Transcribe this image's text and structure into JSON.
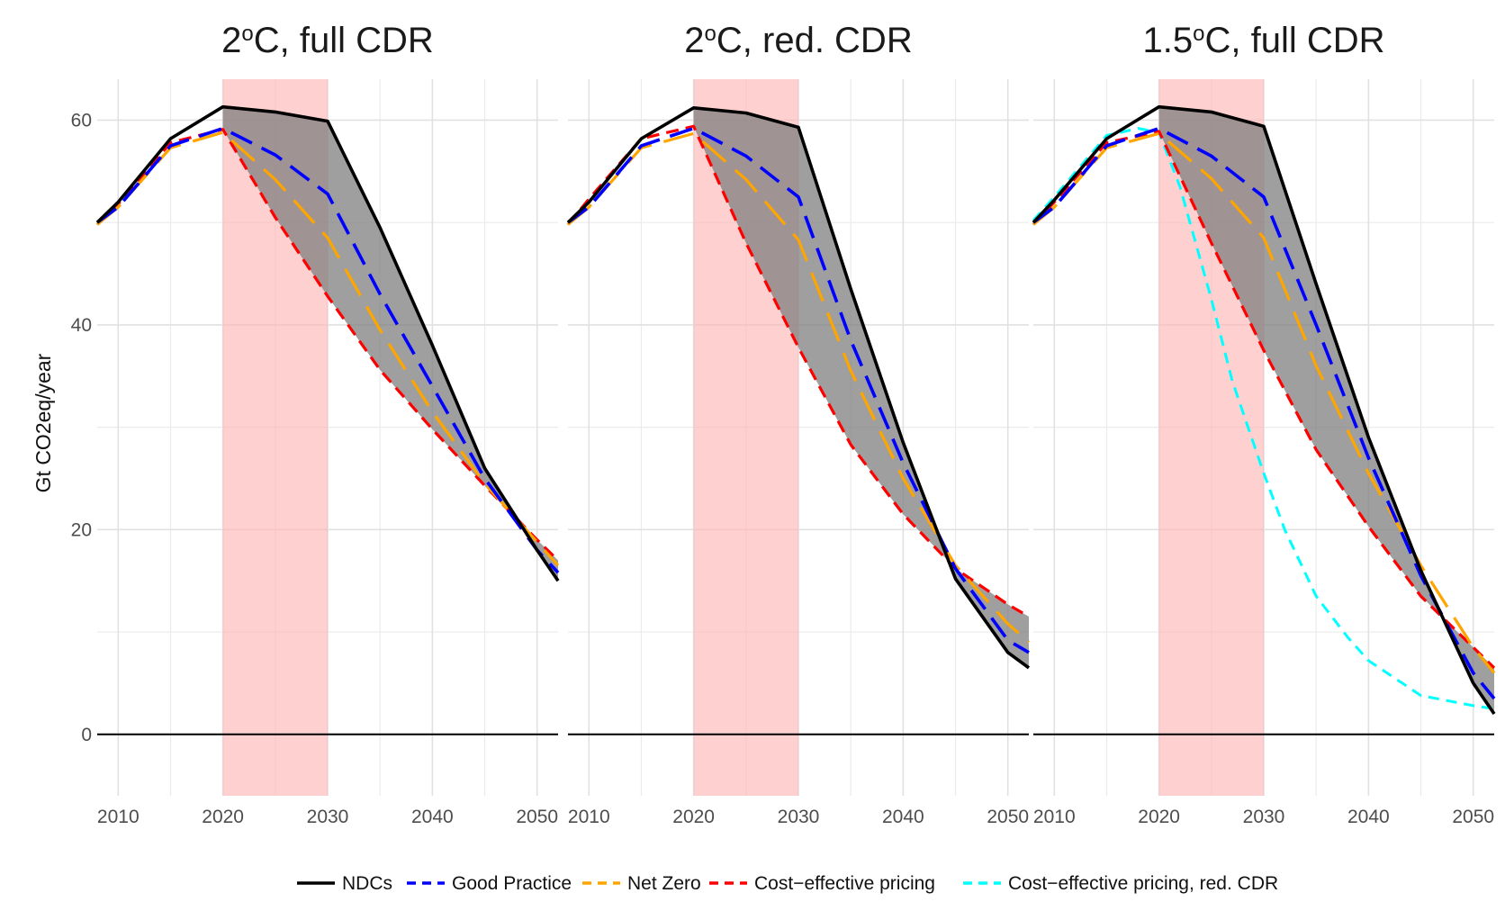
{
  "chart_data": {
    "type": "line",
    "ylabel": "Gt CO2eq/year",
    "xlim": [
      2008,
      2052
    ],
    "ylim": [
      -6,
      64
    ],
    "x_ticks": [
      2010,
      2020,
      2030,
      2040,
      2050
    ],
    "y_ticks": [
      0,
      20,
      40,
      60
    ],
    "shaded_x_range": [
      2020,
      2030
    ],
    "band_between": [
      "NDCs",
      "Cost−effective pricing"
    ],
    "colors": {
      "NDCs": "#000000",
      "Good Practice": "#0000ff",
      "Net Zero": "#ffa500",
      "Cost−effective pricing": "#ff0000",
      "Cost−effective pricing, red. CDR": "#00ffff",
      "highlight": "#ffb3b3",
      "band": "#7f7f7f"
    },
    "legend": {
      "position": "bottom",
      "entries": [
        {
          "label": "NDCs",
          "color": "#000000",
          "dash": "solid"
        },
        {
          "label": "Good Practice",
          "color": "#0000ff",
          "dash": "dashed"
        },
        {
          "label": "Net Zero",
          "color": "#ffa500",
          "dash": "longdash"
        },
        {
          "label": "Cost−effective pricing",
          "color": "#ff0000",
          "dash": "dashed"
        },
        {
          "label": "Cost−effective pricing, red. CDR",
          "color": "#00ffff",
          "dash": "dashed"
        }
      ]
    },
    "panels": [
      {
        "title_main": "2",
        "title_sup": "o",
        "title_rest": "C, full CDR",
        "series": [
          {
            "name": "NDCs",
            "x": [
              2008,
              2010,
              2015,
              2020,
              2025,
              2030,
              2035,
              2040,
              2045,
              2050,
              2052
            ],
            "y": [
              50,
              52,
              58.2,
              61.3,
              60.8,
              59.9,
              49.5,
              38,
              26,
              18,
              15
            ]
          },
          {
            "name": "Good Practice",
            "x": [
              2008,
              2010,
              2015,
              2020,
              2025,
              2030,
              2035,
              2040,
              2045,
              2050,
              2052
            ],
            "y": [
              50,
              51.5,
              57.5,
              59.2,
              56.6,
              52.8,
              43,
              34,
              25,
              18,
              15.8
            ]
          },
          {
            "name": "Net Zero",
            "x": [
              2008,
              2010,
              2015,
              2020,
              2025,
              2030,
              2035,
              2040,
              2045,
              2050,
              2052
            ],
            "y": [
              49.8,
              51.5,
              57.3,
              58.8,
              54.2,
              48.5,
              39.5,
              31.5,
              24.5,
              18.8,
              16.5
            ]
          },
          {
            "name": "Cost−effective pricing",
            "x": [
              2008,
              2010,
              2015,
              2020,
              2025,
              2030,
              2035,
              2040,
              2045,
              2050,
              2052
            ],
            "y": [
              49.8,
              51.8,
              57.8,
              59.1,
              50.5,
              42.8,
              35.6,
              29.8,
              24.3,
              19,
              17
            ]
          }
        ]
      },
      {
        "title_main": "2",
        "title_sup": "o",
        "title_rest": "C, red. CDR",
        "series": [
          {
            "name": "NDCs",
            "x": [
              2008,
              2010,
              2015,
              2020,
              2025,
              2030,
              2035,
              2040,
              2045,
              2050,
              2052
            ],
            "y": [
              50,
              52,
              58.2,
              61.2,
              60.7,
              59.3,
              43.5,
              28.5,
              15.2,
              8,
              6.5
            ]
          },
          {
            "name": "Good Practice",
            "x": [
              2008,
              2010,
              2015,
              2020,
              2025,
              2030,
              2035,
              2040,
              2045,
              2050,
              2052
            ],
            "y": [
              50,
              51.5,
              57.5,
              59.2,
              56.5,
              52.5,
              38.5,
              26.5,
              16.2,
              9.2,
              8
            ]
          },
          {
            "name": "Net Zero",
            "x": [
              2008,
              2010,
              2015,
              2020,
              2025,
              2030,
              2035,
              2040,
              2045,
              2050,
              2052
            ],
            "y": [
              49.8,
              51.5,
              57.3,
              58.7,
              54.2,
              48.3,
              35.5,
              25,
              16.5,
              10.8,
              9
            ]
          },
          {
            "name": "Cost−effective pricing",
            "x": [
              2008,
              2010,
              2015,
              2020,
              2025,
              2030,
              2035,
              2040,
              2045,
              2050,
              2052
            ],
            "y": [
              49.8,
              52.3,
              58.2,
              59.4,
              48,
              37.8,
              28.3,
              21.5,
              16.2,
              12.7,
              11.5
            ]
          }
        ]
      },
      {
        "title_main": "1.5",
        "title_sup": "o",
        "title_rest": "C, full CDR",
        "series": [
          {
            "name": "NDCs",
            "x": [
              2008,
              2010,
              2015,
              2020,
              2025,
              2030,
              2035,
              2040,
              2045,
              2050,
              2052
            ],
            "y": [
              50,
              52.2,
              58.2,
              61.3,
              60.8,
              59.4,
              44,
              29,
              16,
              5,
              2
            ]
          },
          {
            "name": "Good Practice",
            "x": [
              2008,
              2010,
              2015,
              2020,
              2025,
              2030,
              2035,
              2040,
              2045,
              2050,
              2052
            ],
            "y": [
              50,
              51.5,
              57.5,
              59.2,
              56.5,
              52.5,
              40,
              27,
              15.5,
              6,
              3.5
            ]
          },
          {
            "name": "Net Zero",
            "x": [
              2008,
              2010,
              2015,
              2020,
              2025,
              2030,
              2035,
              2040,
              2045,
              2050,
              2052
            ],
            "y": [
              49.8,
              51.5,
              57.3,
              58.7,
              54.3,
              48.5,
              36,
              25.5,
              16.5,
              8.5,
              6
            ]
          },
          {
            "name": "Cost−effective pricing",
            "x": [
              2008,
              2010,
              2015,
              2020,
              2025,
              2030,
              2035,
              2040,
              2045,
              2050,
              2052
            ],
            "y": [
              49.8,
              52,
              57.8,
              58.9,
              48,
              37.5,
              27.8,
              20.3,
              13.5,
              8.5,
              6.5
            ]
          },
          {
            "name": "Cost−effective pricing, red. CDR",
            "x": [
              2008,
              2010,
              2015,
              2018,
              2020,
              2022,
              2025,
              2027,
              2030,
              2032,
              2035,
              2038,
              2040,
              2045,
              2050,
              2052
            ],
            "y": [
              50.2,
              52.5,
              58.5,
              59.2,
              58.8,
              53.5,
              42.5,
              34.5,
              25.5,
              20,
              13.5,
              9.5,
              7.2,
              3.8,
              2.8,
              2.5
            ]
          }
        ]
      }
    ]
  }
}
